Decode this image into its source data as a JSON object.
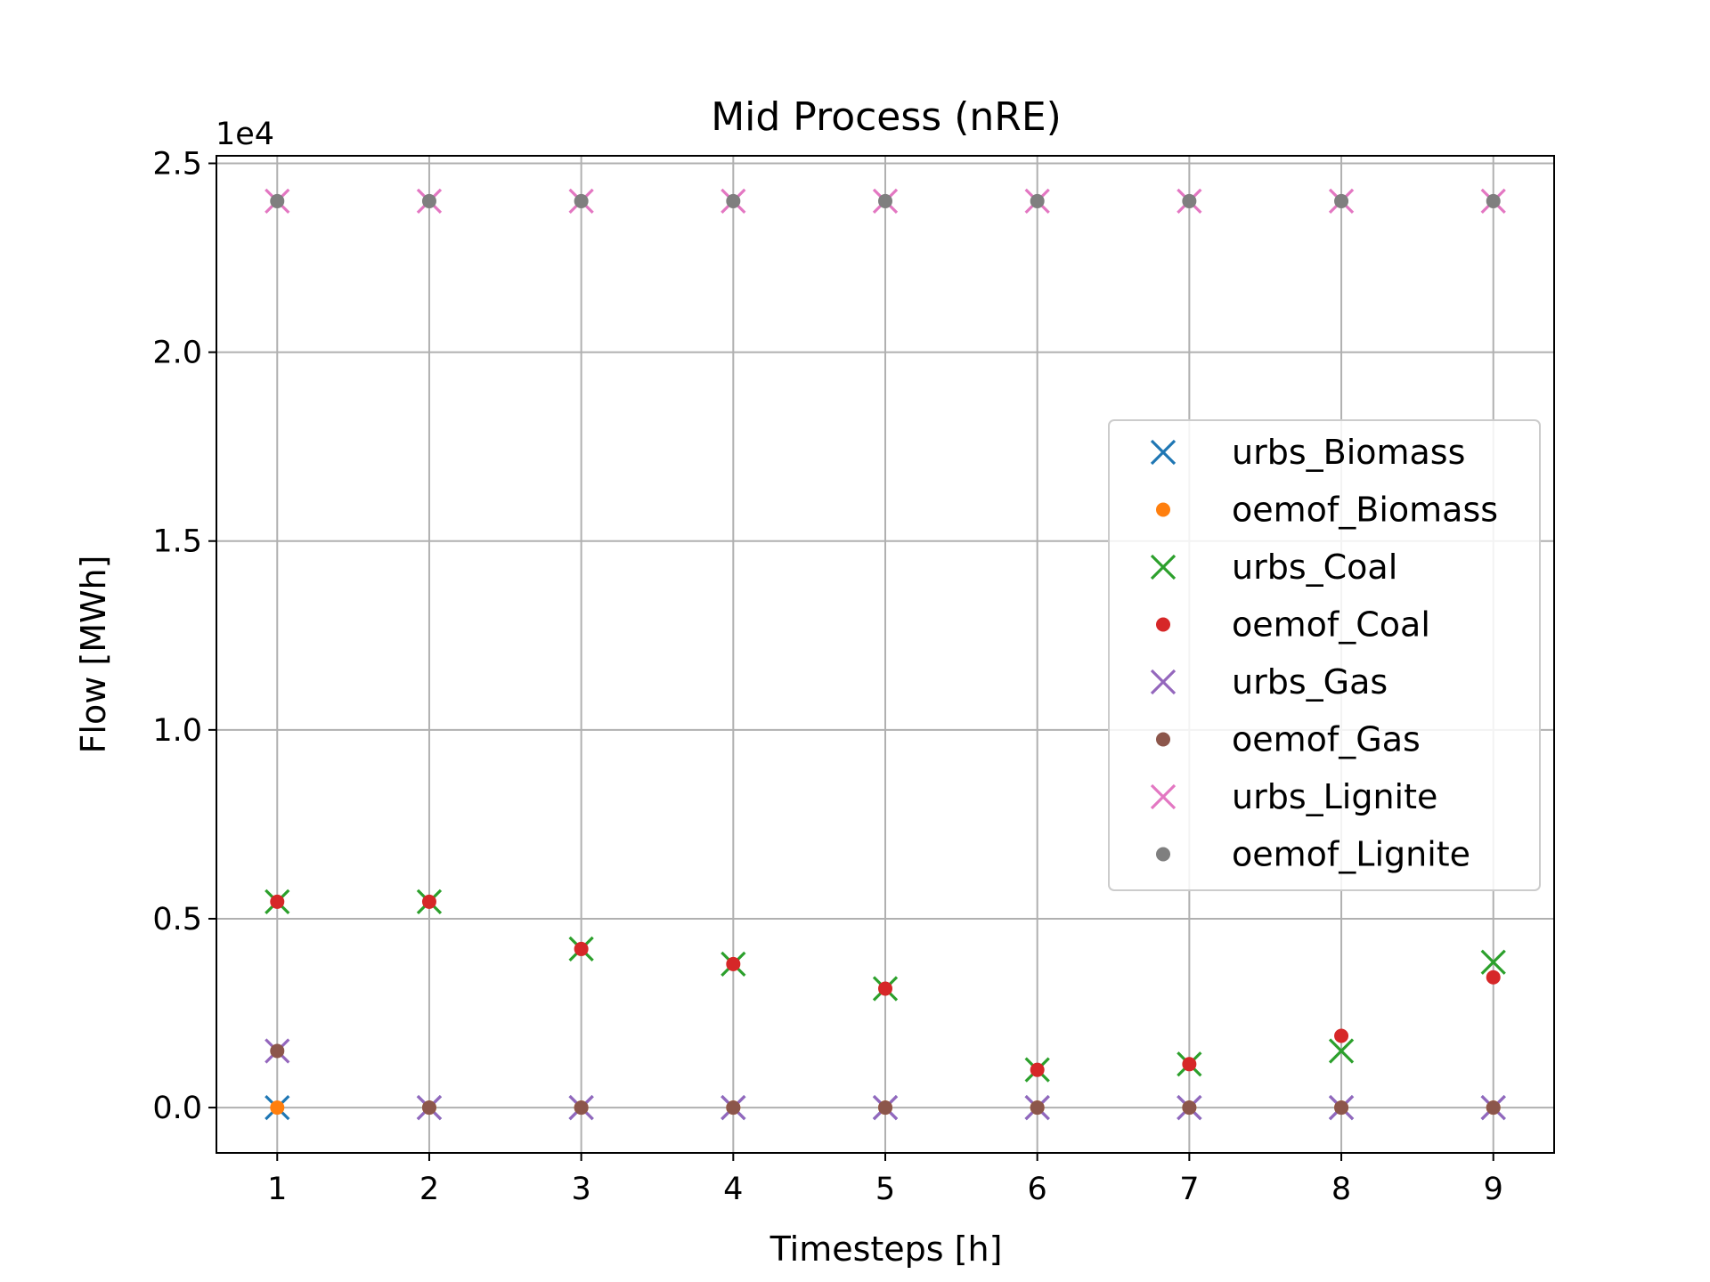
{
  "chart_data": {
    "type": "scatter",
    "title": "Mid Process (nRE)",
    "xlabel": "Timesteps [h]",
    "ylabel": "Flow [MWh]",
    "y_offset_label": "1e4",
    "x_ticks": [
      "1",
      "2",
      "3",
      "4",
      "5",
      "6",
      "7",
      "8",
      "9"
    ],
    "y_ticks": [
      "0.0",
      "0.5",
      "1.0",
      "1.5",
      "2.0",
      "2.5"
    ],
    "xlim": [
      0.6,
      9.4
    ],
    "ylim": [
      -1200,
      25200
    ],
    "grid": true,
    "legend_position": "center-right",
    "x": [
      1,
      2,
      3,
      4,
      5,
      6,
      7,
      8,
      9
    ],
    "series": [
      {
        "name": "urbs_Biomass",
        "marker": "x",
        "color": "#1f77b4",
        "values": [
          0,
          0,
          0,
          0,
          0,
          0,
          0,
          0,
          0
        ]
      },
      {
        "name": "oemof_Biomass",
        "marker": "o",
        "color": "#ff7f0e",
        "values": [
          0,
          0,
          0,
          0,
          0,
          0,
          0,
          0,
          0
        ]
      },
      {
        "name": "urbs_Coal",
        "marker": "x",
        "color": "#2ca02c",
        "values": [
          5450,
          5450,
          4200,
          3800,
          3150,
          1000,
          1150,
          1500,
          3850
        ]
      },
      {
        "name": "oemof_Coal",
        "marker": "o",
        "color": "#d62728",
        "values": [
          5450,
          5450,
          4200,
          3800,
          3150,
          1000,
          1150,
          1900,
          3450
        ]
      },
      {
        "name": "urbs_Gas",
        "marker": "x",
        "color": "#9467bd",
        "values": [
          1500,
          0,
          0,
          0,
          0,
          0,
          0,
          0,
          0
        ]
      },
      {
        "name": "oemof_Gas",
        "marker": "o",
        "color": "#8c564b",
        "values": [
          1500,
          0,
          0,
          0,
          0,
          0,
          0,
          0,
          0
        ]
      },
      {
        "name": "urbs_Lignite",
        "marker": "x",
        "color": "#e377c2",
        "values": [
          24000,
          24000,
          24000,
          24000,
          24000,
          24000,
          24000,
          24000,
          24000
        ]
      },
      {
        "name": "oemof_Lignite",
        "marker": "o",
        "color": "#7f7f7f",
        "values": [
          24000,
          24000,
          24000,
          24000,
          24000,
          24000,
          24000,
          24000,
          24000
        ]
      }
    ]
  }
}
